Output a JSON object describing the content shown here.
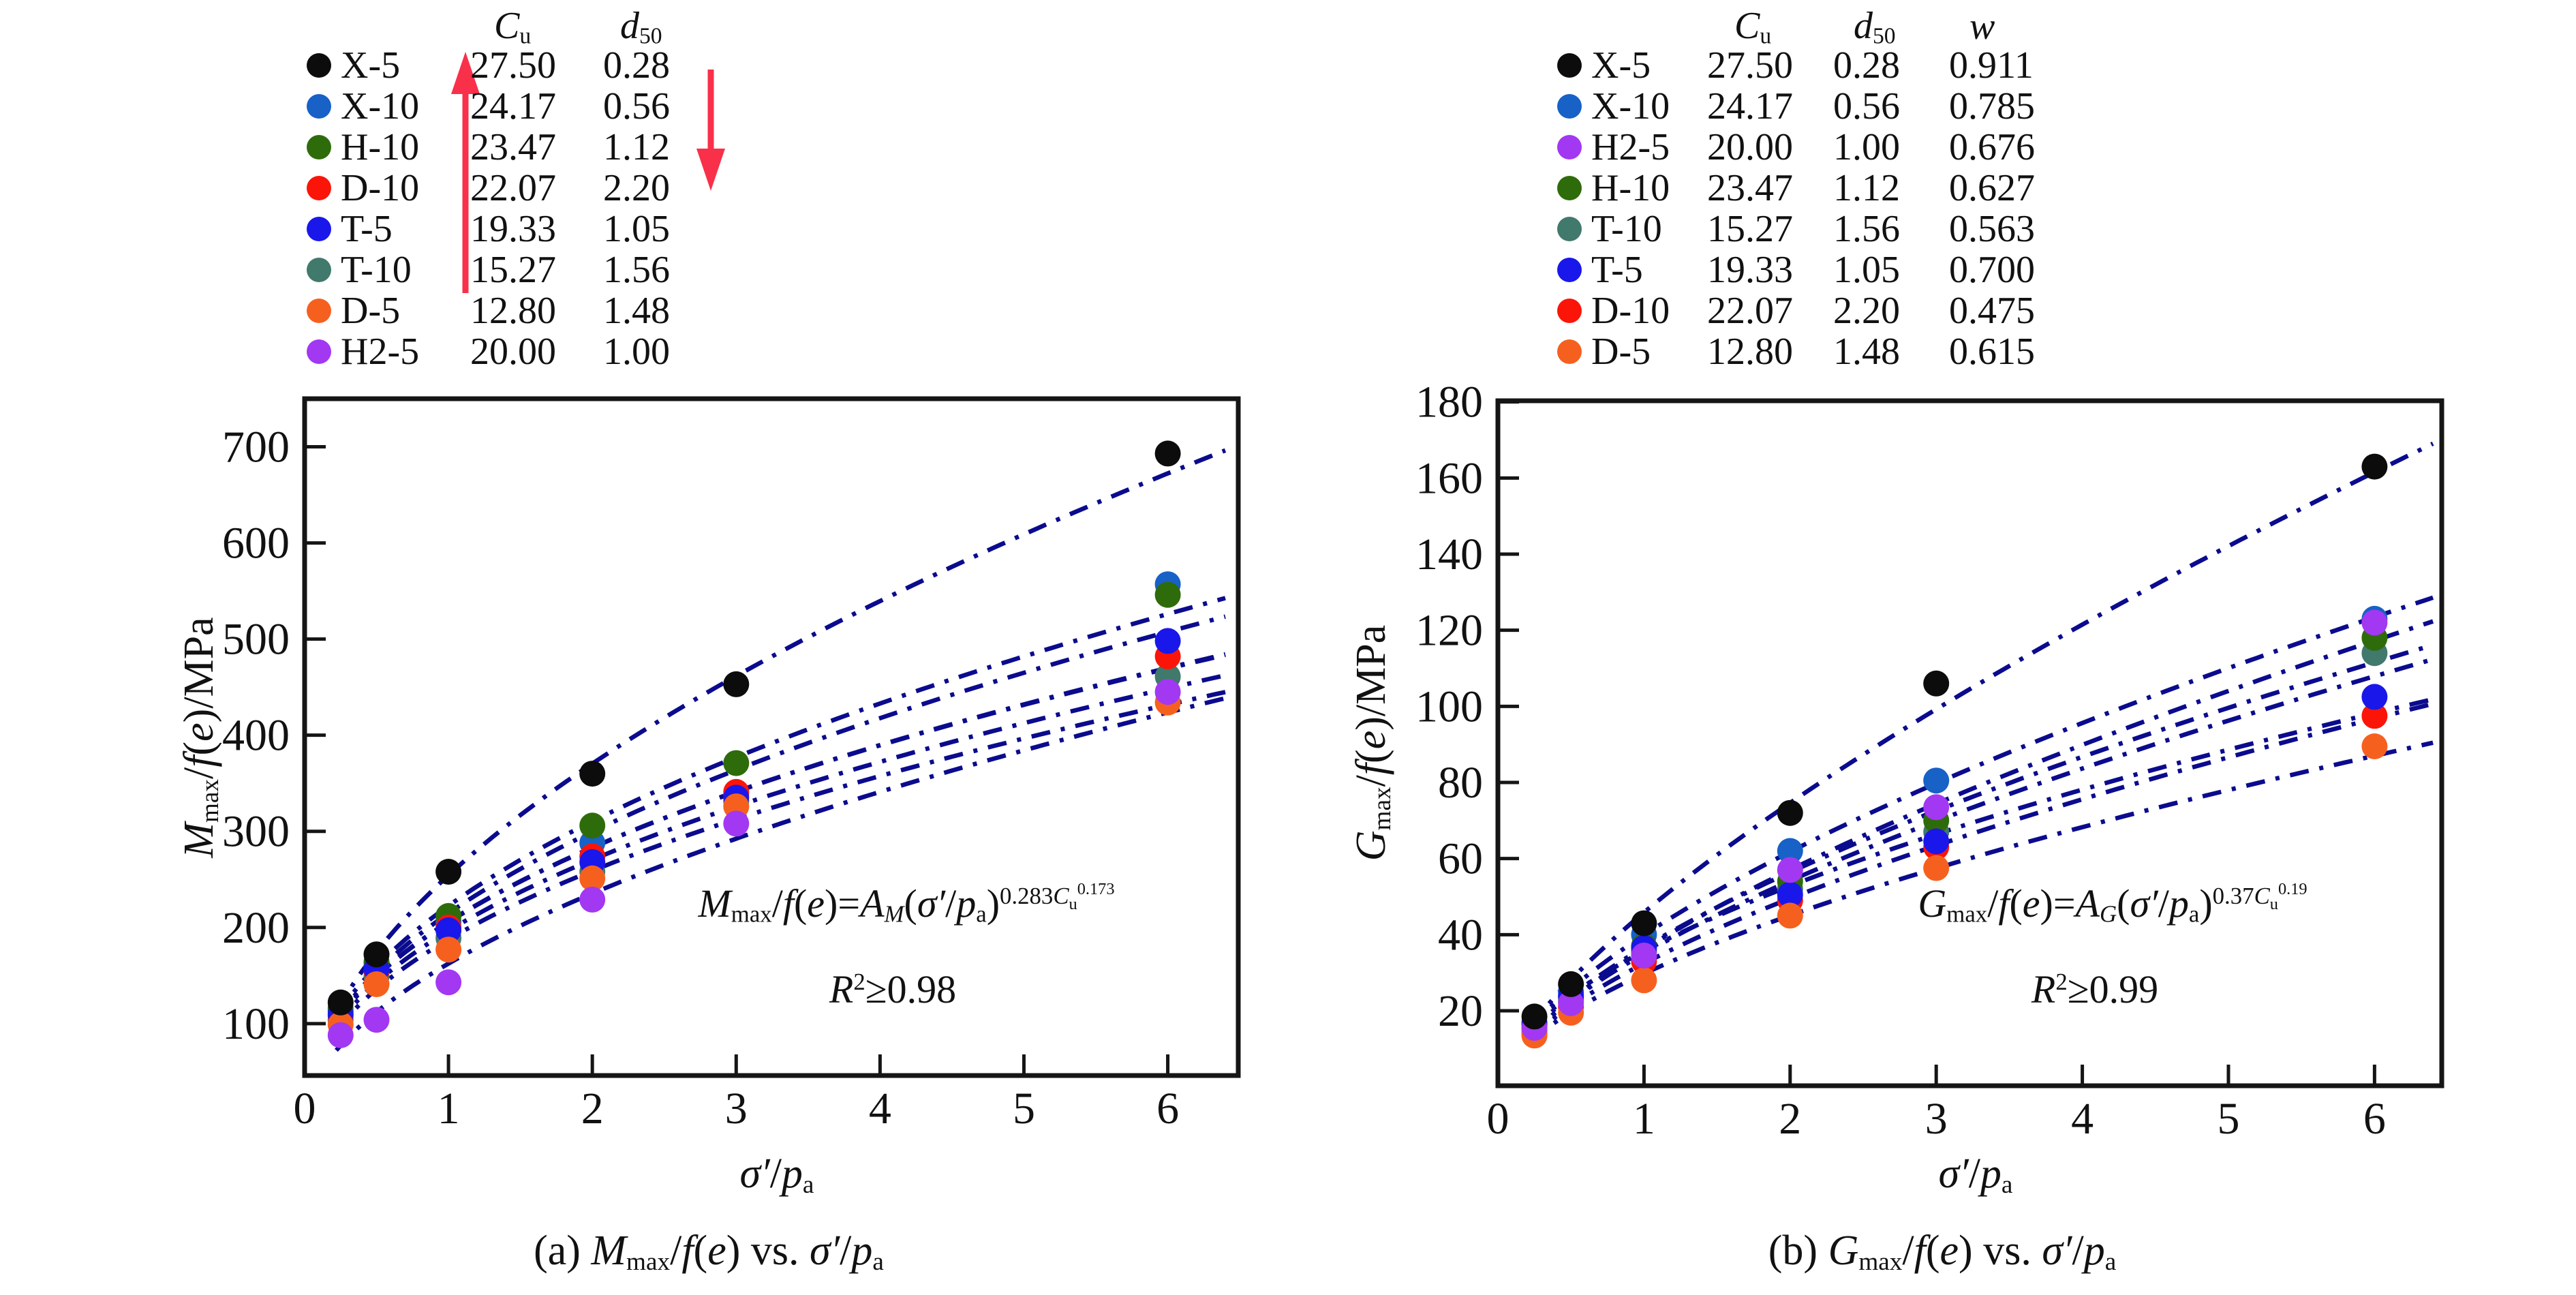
{
  "figure": {
    "background": "#ffffff",
    "text_color": "#111111",
    "curve_color": "#0b0b8e",
    "arrow_color": "#f9304a",
    "axis_color": "#151515"
  },
  "labels": {
    "cu_header": [
      [
        "C",
        "i"
      ],
      [
        "u",
        "b"
      ]
    ],
    "d50_header": [
      [
        "d",
        "i"
      ],
      [
        "50",
        "b"
      ]
    ],
    "w_header": [
      [
        "w",
        "i"
      ]
    ],
    "xlabel": [
      [
        "σ′",
        "i"
      ],
      [
        "/",
        "n"
      ],
      [
        "p",
        "i"
      ],
      [
        "a",
        "b"
      ]
    ],
    "ylabel_a": [
      [
        "M",
        "i"
      ],
      [
        "max",
        "b"
      ],
      [
        "/",
        "n"
      ],
      [
        "f",
        "i"
      ],
      [
        "(",
        "n"
      ],
      [
        "e",
        "i"
      ],
      [
        ")/MPa",
        "n"
      ]
    ],
    "ylabel_b": [
      [
        "G",
        "i"
      ],
      [
        "max",
        "b"
      ],
      [
        "/",
        "n"
      ],
      [
        "f",
        "i"
      ],
      [
        "(",
        "n"
      ],
      [
        "e",
        "i"
      ],
      [
        ")/MPa",
        "n"
      ]
    ],
    "caption_a": [
      [
        "(a) ",
        "n"
      ],
      [
        "M",
        "i"
      ],
      [
        "max",
        "b"
      ],
      [
        "/",
        "n"
      ],
      [
        "f",
        "i"
      ],
      [
        "(",
        "n"
      ],
      [
        "e",
        "i"
      ],
      [
        ") vs. ",
        "n"
      ],
      [
        "σ′",
        "i"
      ],
      [
        "/",
        "n"
      ],
      [
        "p",
        "i"
      ],
      [
        "a",
        "b"
      ]
    ],
    "caption_b": [
      [
        "(b) ",
        "n"
      ],
      [
        "G",
        "i"
      ],
      [
        "max",
        "b"
      ],
      [
        "/",
        "n"
      ],
      [
        "f",
        "i"
      ],
      [
        "(",
        "n"
      ],
      [
        "e",
        "i"
      ],
      [
        ") vs. ",
        "n"
      ],
      [
        "σ′",
        "i"
      ],
      [
        "/",
        "n"
      ],
      [
        "p",
        "i"
      ],
      [
        "a",
        "b"
      ]
    ],
    "equation_a": [
      [
        "M",
        "i"
      ],
      [
        "max",
        "b"
      ],
      [
        "/",
        "n"
      ],
      [
        "f",
        "i"
      ],
      [
        "(",
        "n"
      ],
      [
        "e",
        "i"
      ],
      [
        ")=",
        "n"
      ],
      [
        "A",
        "i"
      ],
      [
        "M",
        "ib"
      ],
      [
        "(",
        "n"
      ],
      [
        "σ′",
        "i"
      ],
      [
        "/",
        "n"
      ],
      [
        "p",
        "i"
      ],
      [
        "a",
        "b"
      ],
      [
        ")",
        "n"
      ],
      [
        "0.283",
        "p"
      ],
      [
        "C",
        "pi"
      ],
      [
        "u",
        "pb"
      ],
      [
        "0.173",
        "pp"
      ]
    ],
    "r2_a": [
      [
        "R",
        "i"
      ],
      [
        "2",
        "p"
      ],
      [
        "≥0.98",
        "n"
      ]
    ],
    "equation_b": [
      [
        "G",
        "i"
      ],
      [
        "max",
        "b"
      ],
      [
        "/",
        "n"
      ],
      [
        "f",
        "i"
      ],
      [
        "(",
        "n"
      ],
      [
        "e",
        "i"
      ],
      [
        ")=",
        "n"
      ],
      [
        "A",
        "i"
      ],
      [
        "G",
        "ib"
      ],
      [
        "(",
        "n"
      ],
      [
        "σ′",
        "i"
      ],
      [
        "/",
        "n"
      ],
      [
        "p",
        "i"
      ],
      [
        "a",
        "b"
      ],
      [
        ")",
        "n"
      ],
      [
        "0.37",
        "p"
      ],
      [
        "C",
        "pi"
      ],
      [
        "u",
        "pb"
      ],
      [
        "0.19",
        "pp"
      ]
    ],
    "r2_b": [
      [
        "R",
        "i"
      ],
      [
        "2",
        "p"
      ],
      [
        "≥0.99",
        "n"
      ]
    ]
  },
  "legends": [
    {
      "columns": [
        "name",
        "cu",
        "d50"
      ],
      "rows": [
        {
          "name": "X-5",
          "color": "#0c0c0c",
          "cu": "27.50",
          "d50": "0.28"
        },
        {
          "name": "X-10",
          "color": "#1761c7",
          "cu": "24.17",
          "d50": "0.56"
        },
        {
          "name": "H-10",
          "color": "#2e6c0b",
          "cu": "23.47",
          "d50": "1.12"
        },
        {
          "name": "D-10",
          "color": "#fb1508",
          "cu": "22.07",
          "d50": "2.20"
        },
        {
          "name": "T-5",
          "color": "#1a17ea",
          "cu": "19.33",
          "d50": "1.05"
        },
        {
          "name": "T-10",
          "color": "#41796c",
          "cu": "15.27",
          "d50": "1.56"
        },
        {
          "name": "D-5",
          "color": "#f6601f",
          "cu": "12.80",
          "d50": "1.48"
        },
        {
          "name": "H2-5",
          "color": "#a238f2",
          "cu": "20.00",
          "d50": "1.00"
        }
      ],
      "arrow_up_along_cu": true,
      "arrow_down_along_d50": true
    },
    {
      "columns": [
        "name",
        "cu",
        "d50",
        "w"
      ],
      "rows": [
        {
          "name": "X-5",
          "color": "#0c0c0c",
          "cu": "27.50",
          "d50": "0.28",
          "w": "0.911"
        },
        {
          "name": "X-10",
          "color": "#1761c7",
          "cu": "24.17",
          "d50": "0.56",
          "w": "0.785"
        },
        {
          "name": "H2-5",
          "color": "#a238f2",
          "cu": "20.00",
          "d50": "1.00",
          "w": "0.676"
        },
        {
          "name": "H-10",
          "color": "#2e6c0b",
          "cu": "23.47",
          "d50": "1.12",
          "w": "0.627"
        },
        {
          "name": "T-10",
          "color": "#41796c",
          "cu": "15.27",
          "d50": "1.56",
          "w": "0.563"
        },
        {
          "name": "T-5",
          "color": "#1a17ea",
          "cu": "19.33",
          "d50": "1.05",
          "w": "0.700"
        },
        {
          "name": "D-10",
          "color": "#fb1508",
          "cu": "22.07",
          "d50": "2.20",
          "w": "0.475"
        },
        {
          "name": "D-5",
          "color": "#f6601f",
          "cu": "12.80",
          "d50": "1.48",
          "w": "0.615"
        }
      ]
    }
  ],
  "chart_data": [
    {
      "type": "scatter",
      "caption_text": "(a) Mmax/f(e) vs. σ′/pa",
      "xlabel": "σ′/pa",
      "ylabel": "Mmax/f(e)/MPa",
      "equation_text": "Mmax/f(e)=AM(σ′/pa)^(0.283Cu^0.173)",
      "r2_text": "R2≥0.98",
      "xlim": [
        0,
        6.49
      ],
      "ylim": [
        46,
        750
      ],
      "xticks": [
        0,
        1,
        2,
        3,
        4,
        5,
        6
      ],
      "xtick_labels": [
        "0",
        "1",
        "2",
        "3",
        "4",
        "5",
        "6"
      ],
      "yticks": [
        100,
        200,
        300,
        400,
        500,
        600,
        700
      ],
      "ytick_labels": [
        "100",
        "200",
        "300",
        "400",
        "500",
        "600",
        "700"
      ],
      "grid": false,
      "x": [
        0.25,
        0.5,
        1,
        2,
        3,
        6
      ],
      "series": [
        {
          "name": "X-5",
          "color": "#0c0c0c",
          "values": [
            122,
            172,
            258,
            360,
            453,
            693
          ]
        },
        {
          "name": "X-10",
          "color": "#1761c7",
          "values": [
            113,
            160,
            206,
            288,
            338,
            557
          ]
        },
        {
          "name": "H-10",
          "color": "#2e6c0b",
          "values": [
            116,
            164,
            212,
            306,
            371,
            546
          ]
        },
        {
          "name": "D-10",
          "color": "#fb1508",
          "values": [
            108,
            155,
            200,
            274,
            341,
            482
          ]
        },
        {
          "name": "T-5",
          "color": "#1a17ea",
          "values": [
            110,
            157,
            197,
            268,
            335,
            498
          ]
        },
        {
          "name": "T-10",
          "color": "#41796c",
          "values": [
            104,
            149,
            189,
            258,
            331,
            461
          ]
        },
        {
          "name": "D-5",
          "color": "#f6601f",
          "values": [
            99,
            141,
            177,
            251,
            326,
            434
          ]
        },
        {
          "name": "H2-5",
          "color": "#a238f2",
          "values": [
            88,
            104,
            143,
            229,
            308,
            445
          ]
        }
      ]
    },
    {
      "type": "scatter",
      "caption_text": "(b) Gmax/f(e) vs. σ′/pa",
      "xlabel": "σ′/pa",
      "ylabel": "Gmax/f(e)/MPa",
      "equation_text": "Gmax/f(e)=AG(σ′/pa)^(0.37Cu^0.19)",
      "r2_text": "R2≥0.99",
      "xlim": [
        0,
        6.46
      ],
      "ylim": [
        0.3,
        180.3
      ],
      "xticks": [
        0,
        1,
        2,
        3,
        4,
        5,
        6
      ],
      "xtick_labels": [
        "0",
        "1",
        "2",
        "3",
        "4",
        "5",
        "6"
      ],
      "yticks": [
        20,
        40,
        60,
        80,
        100,
        120,
        140,
        160,
        180
      ],
      "ytick_labels": [
        "20",
        "40",
        "60",
        "80",
        "100",
        "120",
        "140",
        "160",
        "180"
      ],
      "grid": false,
      "x": [
        0.25,
        0.5,
        1,
        2,
        3,
        6
      ],
      "series": [
        {
          "name": "X-5",
          "color": "#0c0c0c",
          "values": [
            18.5,
            27,
            43,
            72,
            106,
            163
          ]
        },
        {
          "name": "X-10",
          "color": "#1761c7",
          "values": [
            17,
            25,
            40,
            62,
            80.5,
            123
          ]
        },
        {
          "name": "H2-5",
          "color": "#a238f2",
          "values": [
            15.5,
            22,
            34.5,
            57,
            73.5,
            122
          ]
        },
        {
          "name": "H-10",
          "color": "#2e6c0b",
          "values": [
            16,
            23.5,
            37,
            54,
            70,
            118
          ]
        },
        {
          "name": "T-10",
          "color": "#41796c",
          "values": [
            15,
            22.5,
            35.5,
            52,
            67,
            114
          ]
        },
        {
          "name": "T-5",
          "color": "#1a17ea",
          "values": [
            16.5,
            24,
            36.5,
            50.5,
            64.5,
            102.5
          ]
        },
        {
          "name": "D-10",
          "color": "#fb1508",
          "values": [
            14,
            21,
            33,
            49,
            63,
            97.5
          ]
        },
        {
          "name": "D-5",
          "color": "#f6601f",
          "values": [
            13.5,
            19.5,
            28,
            45,
            57.5,
            89.5
          ]
        }
      ]
    }
  ]
}
